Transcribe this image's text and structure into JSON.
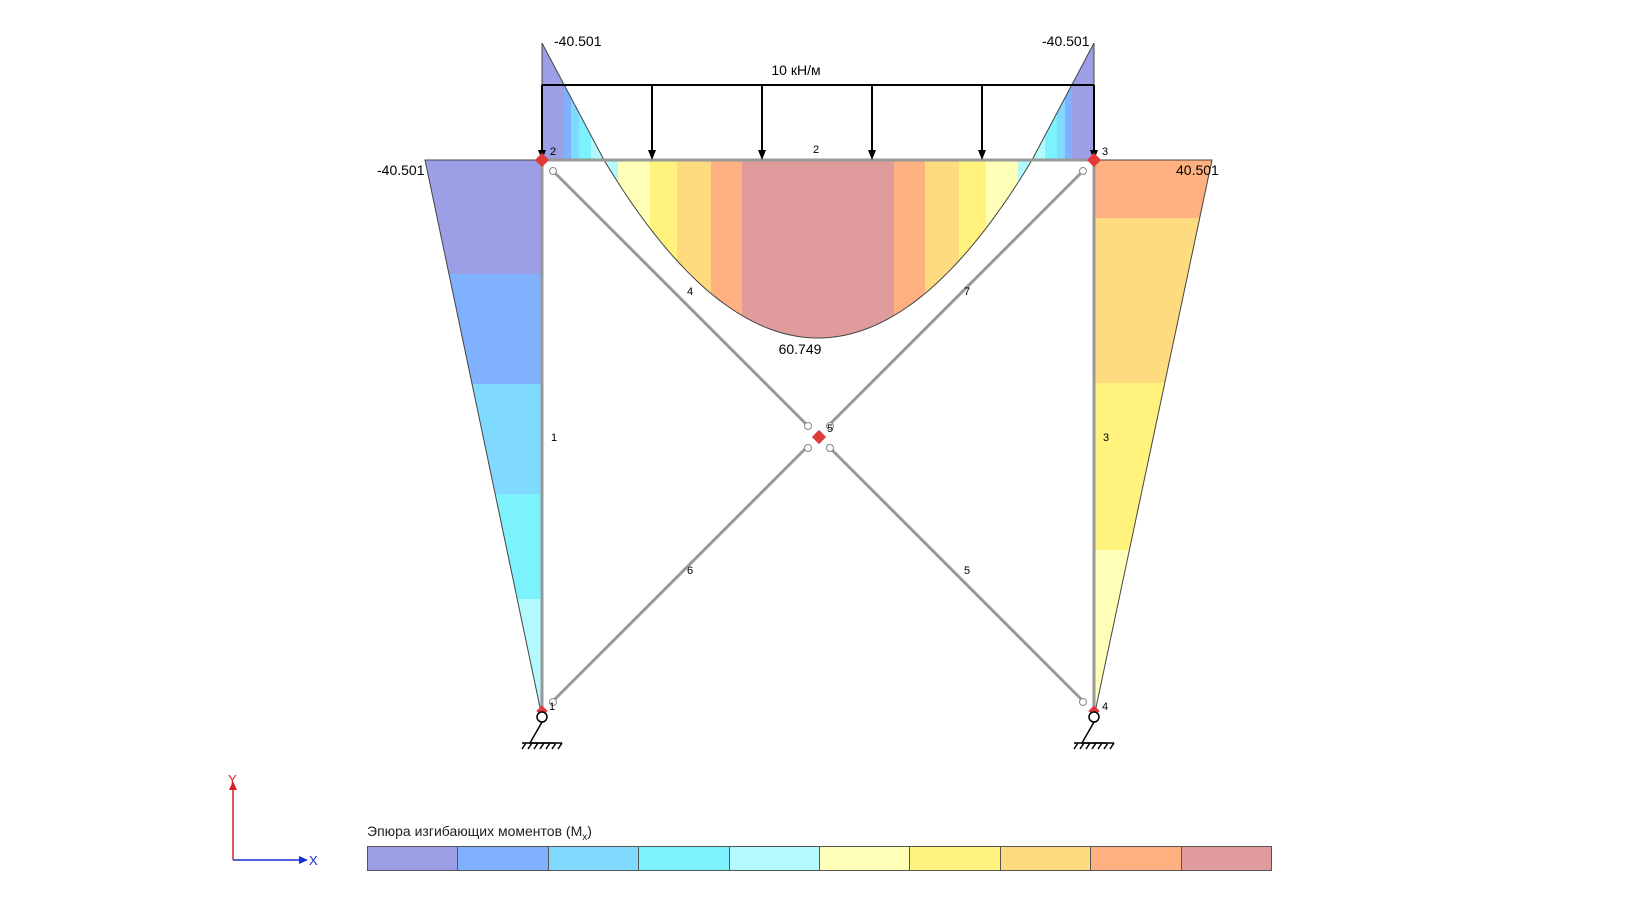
{
  "diagram": {
    "load_label": "10 кН/м",
    "values": {
      "top_left": "-40.501",
      "top_right": "-40.501",
      "left_column_top": "-40.501",
      "right_column_top": "40.501",
      "midspan": "60.749"
    },
    "node_labels": [
      "1",
      "2",
      "3",
      "4",
      "5"
    ],
    "element_labels": [
      "1",
      "2",
      "3",
      "4",
      "5",
      "6",
      "7"
    ],
    "axis": {
      "y": "Y",
      "x": "X"
    },
    "colors": {
      "bands": [
        "#9c9ee6",
        "#80b1ff",
        "#80d9ff",
        "#7df2ff",
        "#b3faff",
        "#ffffb8",
        "#fff27d",
        "#ffdb80",
        "#ffb080",
        "#e09c9c"
      ],
      "frame": "#999999",
      "node": "#e03a3a",
      "axis_y": "#d62020",
      "axis_x": "#1a2ed6"
    }
  },
  "legend": {
    "title": "Эпюра изгибающих моментов (M",
    "title_sub": "x",
    "title_end": ")"
  }
}
